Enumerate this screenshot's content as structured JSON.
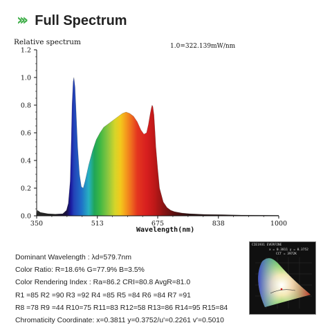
{
  "header": {
    "icon": "triple-chevron-right-icon",
    "accent_color": "#3fae49",
    "title": "Full Spectrum"
  },
  "chart_data": {
    "type": "area",
    "ylabel": "Relative spectrum",
    "xlabel": "Wavelength(nm)",
    "annotation": "1.0=322.139mW/nm",
    "xlim": [
      350,
      1000
    ],
    "ylim": [
      0,
      1.2
    ],
    "x_ticks": [
      "350",
      "513",
      "675",
      "838",
      "1000"
    ],
    "y_ticks": [
      "0.0",
      "0.2",
      "0.4",
      "0.6",
      "0.8",
      "1.0",
      "1.2"
    ],
    "grid": false,
    "fill": "visible-spectrum gradient",
    "series": [
      {
        "x": [
          350,
          352,
          360,
          380,
          400,
          420,
          430,
          435,
          440,
          443,
          445,
          448,
          450,
          453,
          456,
          460,
          465,
          470,
          475,
          480,
          490,
          500,
          510,
          520,
          530,
          540,
          550,
          560,
          570,
          580,
          590,
          600,
          610,
          620,
          630,
          638,
          645,
          650,
          655,
          658,
          660,
          662,
          665,
          668,
          670,
          675,
          680,
          690,
          700,
          710,
          720,
          740,
          760,
          800,
          850,
          900,
          1000
        ],
        "y": [
          0.0,
          0.04,
          0.025,
          0.015,
          0.012,
          0.015,
          0.04,
          0.09,
          0.25,
          0.55,
          0.8,
          0.97,
          1.0,
          0.93,
          0.75,
          0.5,
          0.3,
          0.21,
          0.2,
          0.25,
          0.37,
          0.47,
          0.55,
          0.6,
          0.64,
          0.66,
          0.68,
          0.7,
          0.72,
          0.74,
          0.75,
          0.74,
          0.72,
          0.68,
          0.62,
          0.59,
          0.6,
          0.66,
          0.74,
          0.78,
          0.8,
          0.79,
          0.73,
          0.6,
          0.5,
          0.34,
          0.2,
          0.1,
          0.06,
          0.04,
          0.03,
          0.02,
          0.015,
          0.01,
          0.008,
          0.005,
          0.004
        ]
      }
    ]
  },
  "specs": {
    "dominant": "Dominant Wavelength : λd=579.7nm",
    "ratio": "Color Ratio: R=18.6% G=77.9% B=3.5%",
    "cri": "Color Rendering Index : Ra=86.2 CRI=80.8 AvgR=81.0",
    "r_line1": "R1 =85 R2 =90 R3 =92 R4 =85 R5 =84 R6 =84 R7 =91",
    "r_line2": "R8 =78 R9 =44 R10=75 R11=83 R12=58 R13=86 R14=95 R15=84",
    "chromaticity": "Chromaticity Coordinate: x=0.3811 y=0.3752/u'=0.2261 v'=0.5010"
  },
  "cie_thumbnail": {
    "title": "CIE1931 EVERFINE",
    "coords": "x = 0.3811 y = 0.3752",
    "cct": "CCT = 3972K"
  }
}
